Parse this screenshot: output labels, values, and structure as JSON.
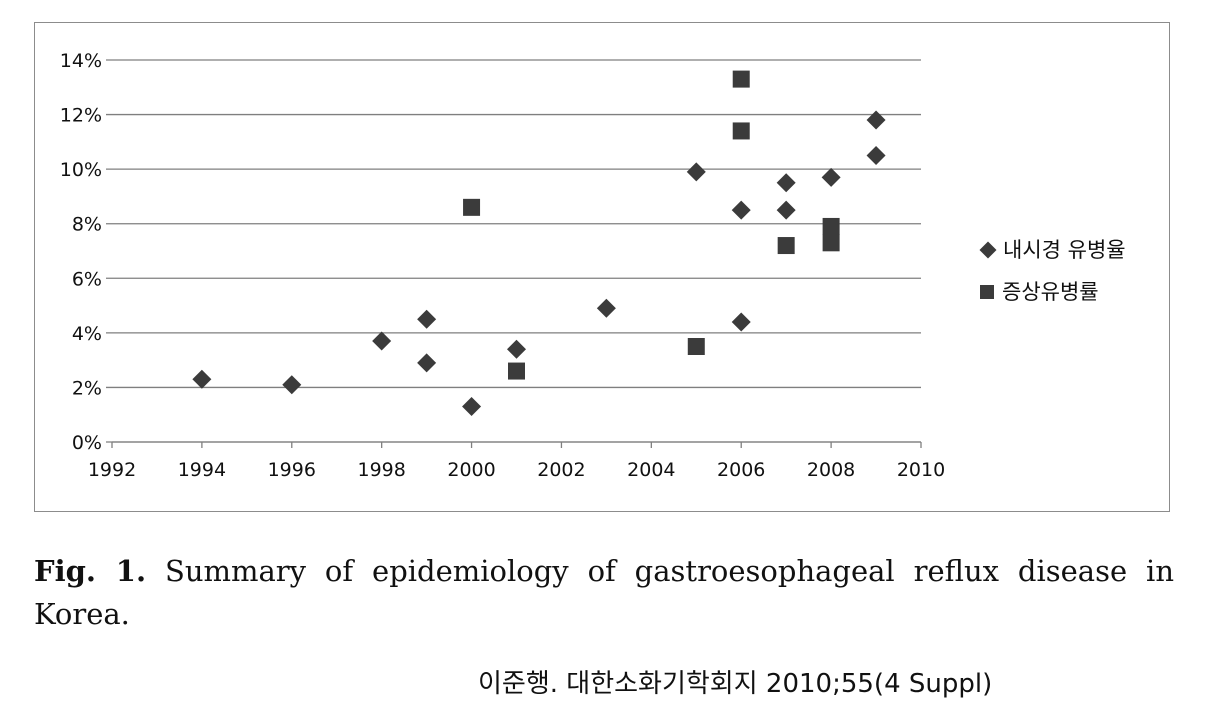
{
  "chart_data": {
    "type": "scatter",
    "title": "",
    "xlabel": "",
    "ylabel": "",
    "xlim": [
      1992,
      2010
    ],
    "ylim": [
      0,
      14
    ],
    "x_ticks": [
      "1992",
      "1994",
      "1996",
      "1998",
      "2000",
      "2002",
      "2004",
      "2006",
      "2008",
      "2010"
    ],
    "y_ticks": [
      "0%",
      "2%",
      "4%",
      "6%",
      "8%",
      "10%",
      "12%",
      "14%"
    ],
    "grid": "horizontal",
    "legend_position": "right",
    "series": [
      {
        "name": "내시경 유병율",
        "marker": "diamond",
        "color": "#3b3b3b",
        "points": [
          [
            1994,
            2.3
          ],
          [
            1996,
            2.1
          ],
          [
            1998,
            3.7
          ],
          [
            1999,
            4.5
          ],
          [
            1999,
            2.9
          ],
          [
            2000,
            1.3
          ],
          [
            2001,
            3.4
          ],
          [
            2003,
            4.9
          ],
          [
            2005,
            9.9
          ],
          [
            2006,
            8.5
          ],
          [
            2006,
            4.4
          ],
          [
            2007,
            9.5
          ],
          [
            2007,
            8.5
          ],
          [
            2008,
            9.7
          ],
          [
            2009,
            11.8
          ],
          [
            2009,
            10.5
          ]
        ]
      },
      {
        "name": "증상유병률",
        "marker": "square",
        "color": "#3b3b3b",
        "points": [
          [
            2000,
            8.6
          ],
          [
            2001,
            2.6
          ],
          [
            2005,
            3.5
          ],
          [
            2006,
            13.3
          ],
          [
            2006,
            11.4
          ],
          [
            2007,
            7.2
          ],
          [
            2008,
            7.9
          ],
          [
            2008,
            7.3
          ]
        ]
      }
    ]
  },
  "caption": {
    "label": "Fig. 1.",
    "text": "Summary of epidemiology of gastroesophageal reflux disease in Korea."
  },
  "source": "이준행. 대한소화기학회지 2010;55(4 Suppl)"
}
